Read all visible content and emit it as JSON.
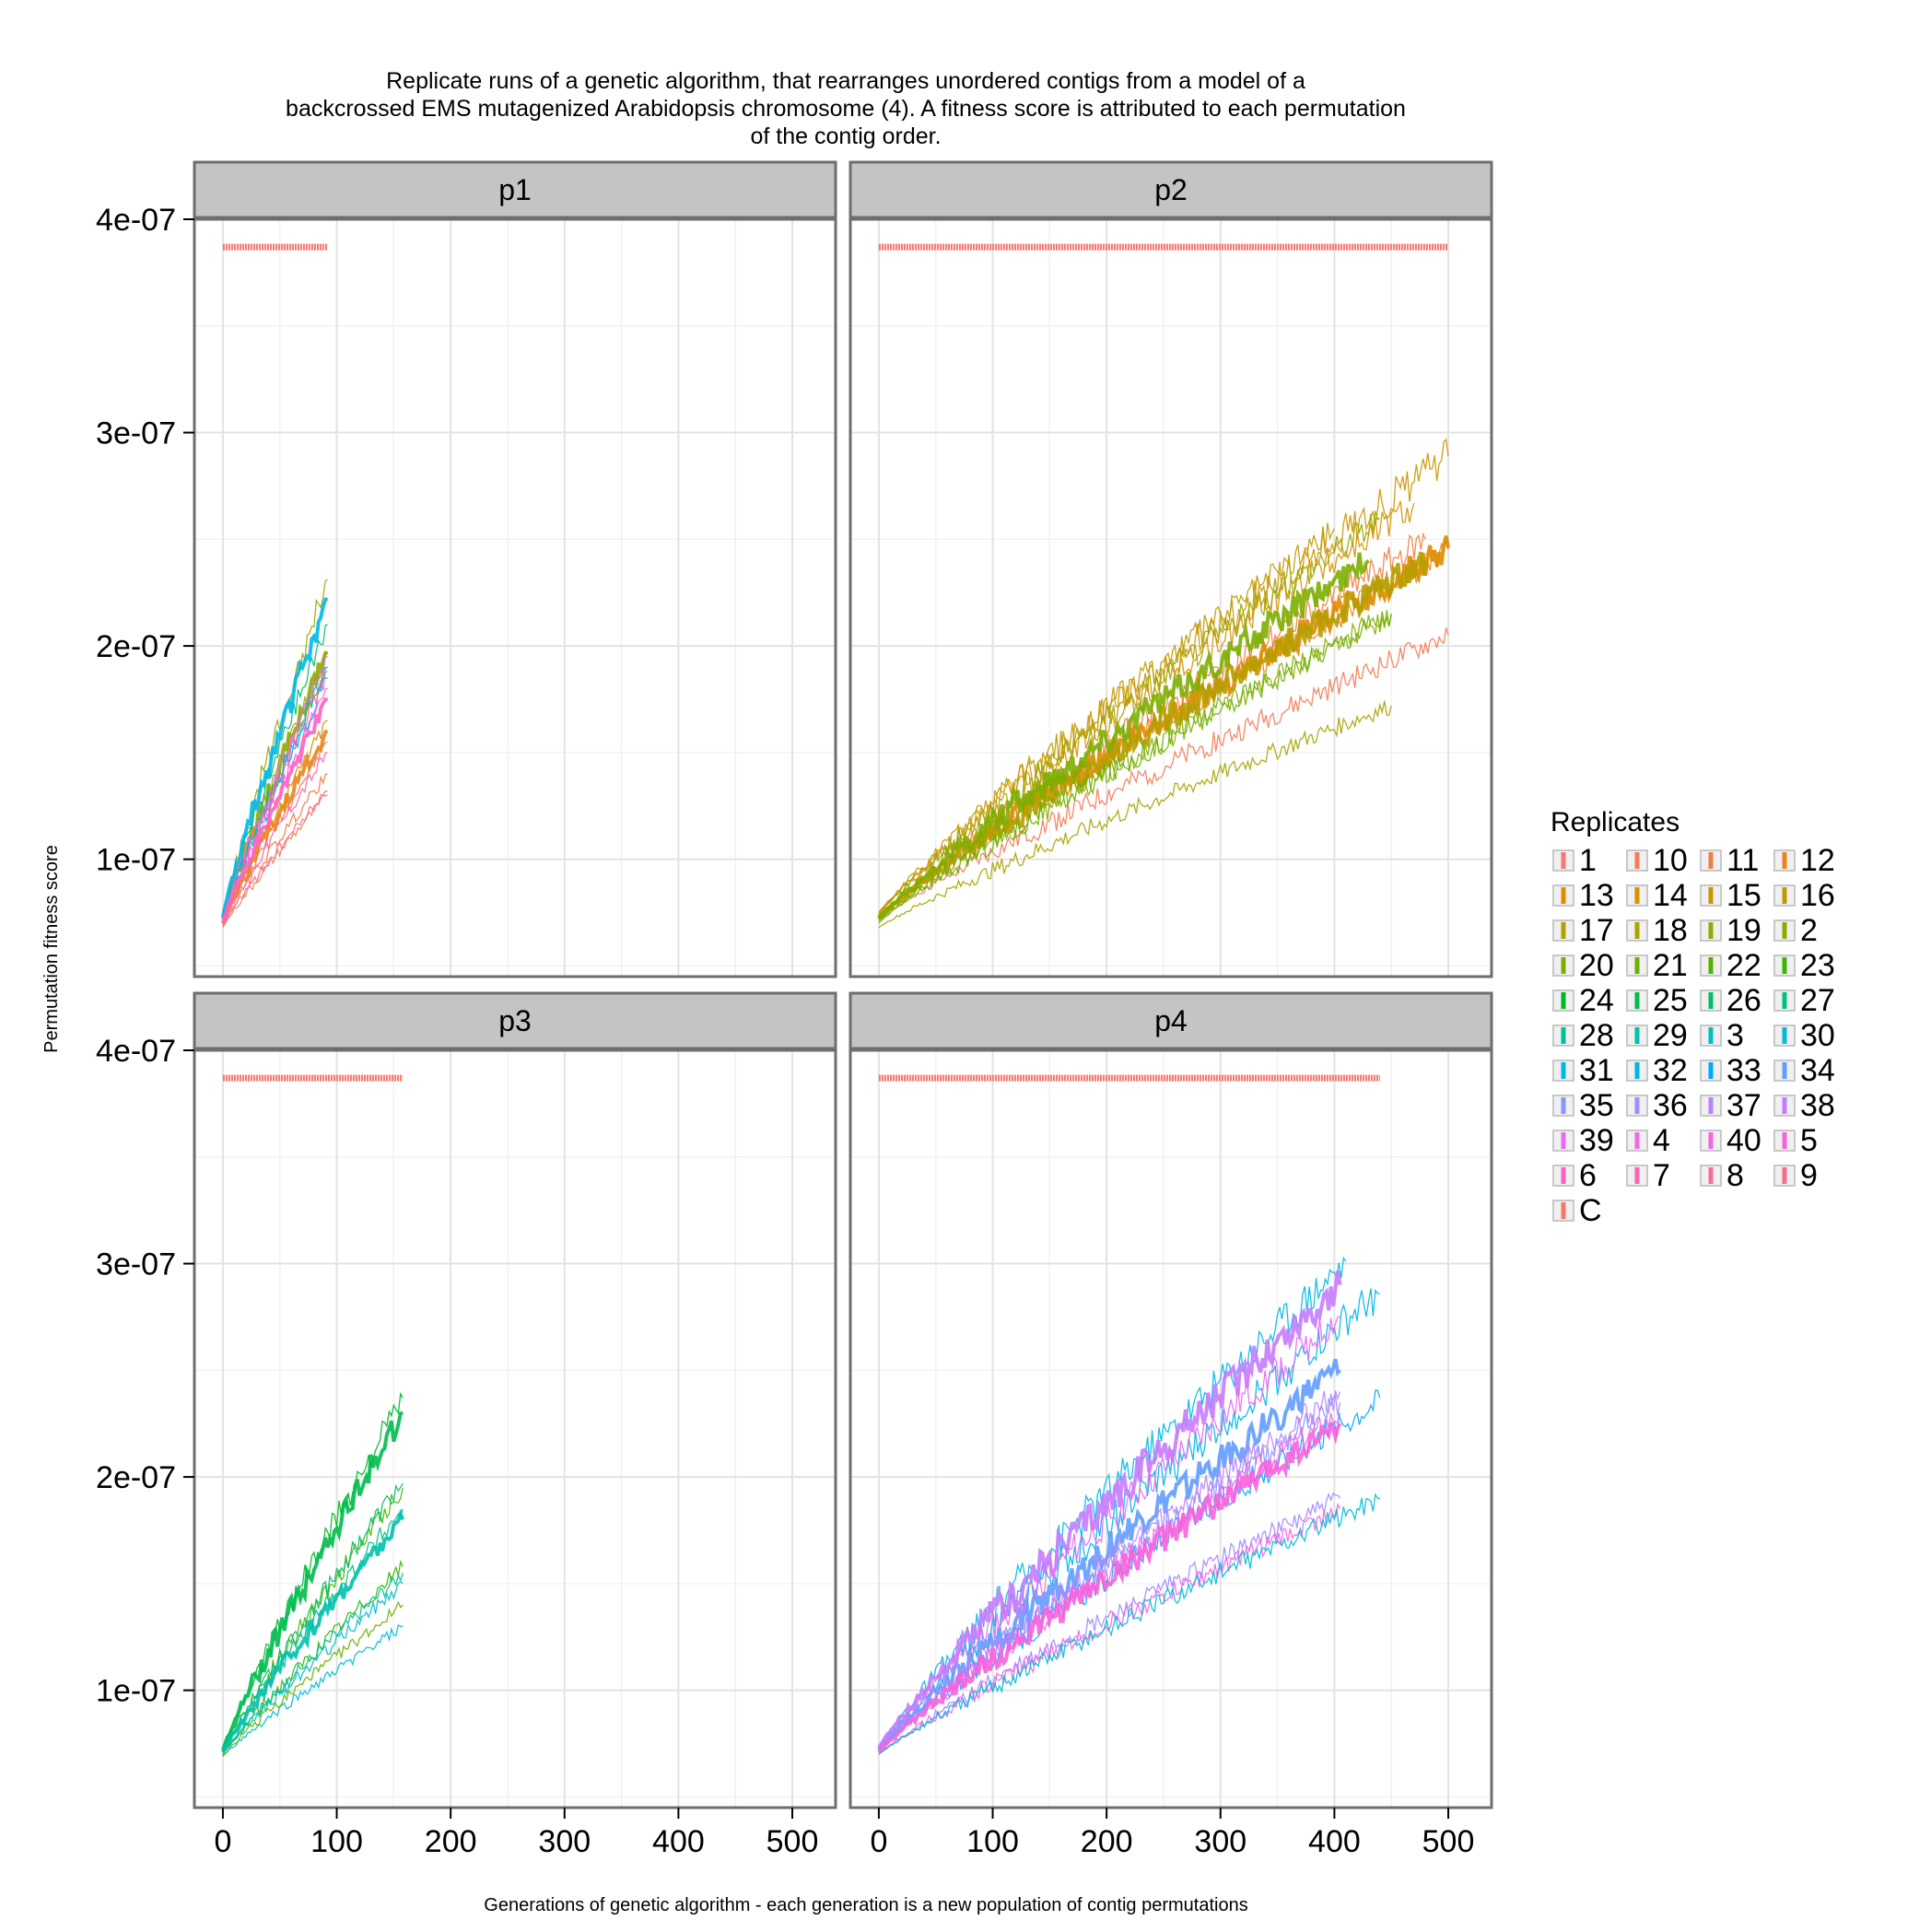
{
  "chart_data": {
    "type": "line",
    "title": "Replicate runs of a genetic algorithm, that rearranges unordered contigs from a model of a\nbackcrossed EMS mutagenized Arabidopsis chromosome (4). A fitness score is attributed to each permutation\nof the contig order.",
    "xlabel": "Generations of genetic algorithm - each generation is a new population of contig permutations",
    "ylabel": "Permutation fitness score",
    "xlim": [
      -25,
      538
    ],
    "ylim": [
      4.5e-08,
      4e-07
    ],
    "x_ticks": [
      0,
      100,
      200,
      300,
      400,
      500
    ],
    "x_tick_labels": [
      "0",
      "100",
      "200",
      "300",
      "400",
      "500"
    ],
    "y_ticks": [
      1e-07,
      2e-07,
      3e-07,
      4e-07
    ],
    "y_tick_labels": [
      "1e-07",
      "2e-07",
      "3e-07",
      "4e-07"
    ],
    "grid": true,
    "facet_labels": [
      "p1",
      "p2",
      "p3",
      "p4"
    ],
    "legend": {
      "title": "Replicates",
      "position": "right",
      "columns": 4,
      "entries": [
        "1",
        "10",
        "11",
        "12",
        "13",
        "14",
        "15",
        "16",
        "17",
        "18",
        "19",
        "2",
        "20",
        "21",
        "22",
        "23",
        "24",
        "25",
        "26",
        "27",
        "28",
        "29",
        "3",
        "30",
        "31",
        "32",
        "33",
        "34",
        "35",
        "36",
        "37",
        "38",
        "39",
        "4",
        "40",
        "5",
        "6",
        "7",
        "8",
        "9",
        "C"
      ],
      "colors": [
        "#F8766D",
        "#F47C56",
        "#EE8043",
        "#E7861B",
        "#DE8C00",
        "#D59100",
        "#CB9600",
        "#BF9B00",
        "#B49F00",
        "#A8A400",
        "#9AA800",
        "#8CAB00",
        "#7CAE00",
        "#6AB100",
        "#53B400",
        "#39B600",
        "#00B81F",
        "#00BB4E",
        "#00BE6C",
        "#00C085",
        "#00C19C",
        "#00C0AF",
        "#00BFC4",
        "#00BCD6",
        "#00B8E5",
        "#00B4F0",
        "#00A9FF",
        "#619CFF",
        "#8B93FF",
        "#A58AFF",
        "#B983FF",
        "#C77CFF",
        "#E76BF3",
        "#ED68ED",
        "#F564E3",
        "#FA62DB",
        "#FF61C3",
        "#FF64B0",
        "#FF689E",
        "#FC6B8A",
        "#F8766D"
      ]
    },
    "panels": [
      {
        "name": "p1",
        "constant_line": {
          "x": [
            0,
            92
          ],
          "y": 3.87e-07,
          "color": "#F8766D"
        },
        "series": [
          {
            "replicate": "1",
            "color": "#F8766D",
            "x": [
              0,
              92
            ],
            "y": [
              7e-08,
              1.55e-07
            ]
          },
          {
            "replicate": "10",
            "color": "#F47C56",
            "x": [
              0,
              92
            ],
            "y": [
              6.8e-08,
              1.3e-07
            ]
          },
          {
            "replicate": "11",
            "color": "#EE8043",
            "x": [
              0,
              92
            ],
            "y": [
              6.9e-08,
              1.4e-07
            ]
          },
          {
            "replicate": "12",
            "color": "#E7861B",
            "x": [
              0,
              92
            ],
            "y": [
              7e-08,
              1.6e-07
            ]
          },
          {
            "replicate": "13",
            "color": "#DE8C00",
            "x": [
              0,
              92
            ],
            "y": [
              7e-08,
              1.65e-07
            ]
          },
          {
            "replicate": "17",
            "color": "#B49F00",
            "x": [
              0,
              92
            ],
            "y": [
              7.2e-08,
              1.97e-07
            ]
          },
          {
            "replicate": "19",
            "color": "#9AA800",
            "x": [
              0,
              92
            ],
            "y": [
              7.3e-08,
              2.31e-07
            ]
          },
          {
            "replicate": "2",
            "color": "#8CAB00",
            "x": [
              0,
              92
            ],
            "y": [
              7.2e-08,
              1.97e-07
            ]
          },
          {
            "replicate": "22",
            "color": "#53B400",
            "x": [
              0,
              92
            ],
            "y": [
              7.1e-08,
              1.9e-07
            ]
          },
          {
            "replicate": "26",
            "color": "#00BE6C",
            "x": [
              0,
              92
            ],
            "y": [
              7.3e-08,
              2.1e-07
            ]
          },
          {
            "replicate": "3",
            "color": "#00BFC4",
            "x": [
              0,
              92
            ],
            "y": [
              7.1e-08,
              1.9e-07
            ]
          },
          {
            "replicate": "31",
            "color": "#00B8E5",
            "x": [
              0,
              92
            ],
            "y": [
              7.3e-08,
              2.22e-07
            ]
          },
          {
            "replicate": "33",
            "color": "#00A9FF",
            "x": [
              0,
              92
            ],
            "y": [
              7.1e-08,
              1.85e-07
            ]
          },
          {
            "replicate": "39",
            "color": "#E76BF3",
            "x": [
              0,
              92
            ],
            "y": [
              7.2e-08,
              1.95e-07
            ]
          },
          {
            "replicate": "5",
            "color": "#FA62DB",
            "x": [
              0,
              92
            ],
            "y": [
              7e-08,
              1.8e-07
            ]
          },
          {
            "replicate": "6",
            "color": "#FF61C3",
            "x": [
              0,
              92
            ],
            "y": [
              7e-08,
              1.75e-07
            ]
          },
          {
            "replicate": "7",
            "color": "#FF64B0",
            "x": [
              0,
              92
            ],
            "y": [
              7.1e-08,
              1.88e-07
            ]
          },
          {
            "replicate": "8",
            "color": "#FF689E",
            "x": [
              0,
              92
            ],
            "y": [
              6.9e-08,
              1.5e-07
            ]
          },
          {
            "replicate": "9",
            "color": "#FC6B8A",
            "x": [
              0,
              92
            ],
            "y": [
              6.9e-08,
              1.32e-07
            ]
          }
        ]
      },
      {
        "name": "p2",
        "constant_line": {
          "x": [
            0,
            500
          ],
          "y": 3.87e-07,
          "color": "#F8766D"
        },
        "series": [
          {
            "replicate": "10",
            "color": "#F47C56",
            "x": [
              0,
              500
            ],
            "y": [
              7.2e-08,
              2.05e-07
            ]
          },
          {
            "replicate": "11",
            "color": "#EE8043",
            "x": [
              0,
              480
            ],
            "y": [
              7.2e-08,
              2.5e-07
            ]
          },
          {
            "replicate": "12",
            "color": "#E7861B",
            "x": [
              0,
              500
            ],
            "y": [
              7.3e-08,
              2.45e-07
            ]
          },
          {
            "replicate": "13",
            "color": "#DE8C00",
            "x": [
              0,
              500
            ],
            "y": [
              7.3e-08,
              2.46e-07
            ]
          },
          {
            "replicate": "14",
            "color": "#D59100",
            "x": [
              0,
              470
            ],
            "y": [
              7.5e-08,
              2.67e-07
            ]
          },
          {
            "replicate": "15",
            "color": "#CB9600",
            "x": [
              0,
              500
            ],
            "y": [
              7.5e-08,
              2.89e-07
            ]
          },
          {
            "replicate": "16",
            "color": "#BF9B00",
            "x": [
              0,
              400
            ],
            "y": [
              7.4e-08,
              2.55e-07
            ]
          },
          {
            "replicate": "17",
            "color": "#B49F00",
            "x": [
              0,
              480
            ],
            "y": [
              7.2e-08,
              2.4e-07
            ]
          },
          {
            "replicate": "18",
            "color": "#A8A400",
            "x": [
              0,
              450
            ],
            "y": [
              6.8e-08,
              1.72e-07
            ]
          },
          {
            "replicate": "19",
            "color": "#9AA800",
            "x": [
              0,
              440
            ],
            "y": [
              7.4e-08,
              2.6e-07
            ]
          },
          {
            "replicate": "2",
            "color": "#8CAB00",
            "x": [
              0,
              450
            ],
            "y": [
              7.1e-08,
              2.15e-07
            ]
          },
          {
            "replicate": "20",
            "color": "#7CAE00",
            "x": [
              0,
              430
            ],
            "y": [
              7.2e-08,
              2.4e-07
            ]
          },
          {
            "replicate": "21",
            "color": "#6AB100",
            "x": [
              0,
              450
            ],
            "y": [
              7e-08,
              2.15e-07
            ]
          }
        ]
      },
      {
        "name": "p3",
        "constant_line": {
          "x": [
            0,
            158
          ],
          "y": 3.87e-07,
          "color": "#F8766D"
        },
        "series": [
          {
            "replicate": "22",
            "color": "#53B400",
            "x": [
              0,
              158
            ],
            "y": [
              7.1e-08,
              1.95e-07
            ]
          },
          {
            "replicate": "23",
            "color": "#39B600",
            "x": [
              0,
              158
            ],
            "y": [
              7e-08,
              1.58e-07
            ]
          },
          {
            "replicate": "24",
            "color": "#00B81F",
            "x": [
              0,
              158
            ],
            "y": [
              7.2e-08,
              2.37e-07
            ]
          },
          {
            "replicate": "25",
            "color": "#00BB4E",
            "x": [
              0,
              158
            ],
            "y": [
              7.2e-08,
              2.3e-07
            ]
          },
          {
            "replicate": "26",
            "color": "#00BE6C",
            "x": [
              0,
              158
            ],
            "y": [
              7.2e-08,
              1.97e-07
            ]
          },
          {
            "replicate": "27",
            "color": "#00C085",
            "x": [
              0,
              158
            ],
            "y": [
              7.1e-08,
              1.85e-07
            ]
          },
          {
            "replicate": "28",
            "color": "#00C19C",
            "x": [
              0,
              158
            ],
            "y": [
              7e-08,
              1.55e-07
            ]
          },
          {
            "replicate": "29",
            "color": "#00C0AF",
            "x": [
              0,
              158
            ],
            "y": [
              7.1e-08,
              1.8e-07
            ]
          },
          {
            "replicate": "3",
            "color": "#00BFC4",
            "x": [
              0,
              158
            ],
            "y": [
              7e-08,
              1.5e-07
            ]
          },
          {
            "replicate": "30",
            "color": "#00BCD6",
            "x": [
              0,
              158
            ],
            "y": [
              6.9e-08,
              1.3e-07
            ]
          },
          {
            "replicate": "21",
            "color": "#6AB100",
            "x": [
              0,
              158
            ],
            "y": [
              6.9e-08,
              1.4e-07
            ]
          }
        ]
      },
      {
        "name": "p4",
        "constant_line": {
          "x": [
            0,
            440
          ],
          "y": 3.87e-07,
          "color": "#F8766D"
        },
        "series": [
          {
            "replicate": "31",
            "color": "#00B8E5",
            "x": [
              0,
              410
            ],
            "y": [
              7.3e-08,
              3.01e-07
            ]
          },
          {
            "replicate": "32",
            "color": "#00B4F0",
            "x": [
              0,
              440
            ],
            "y": [
              7.3e-08,
              2.86e-07
            ]
          },
          {
            "replicate": "33",
            "color": "#00A9FF",
            "x": [
              0,
              440
            ],
            "y": [
              7.2e-08,
              2.37e-07
            ]
          },
          {
            "replicate": "34",
            "color": "#619CFF",
            "x": [
              0,
              405
            ],
            "y": [
              7.2e-08,
              2.5e-07
            ]
          },
          {
            "replicate": "35",
            "color": "#8B93FF",
            "x": [
              0,
              405
            ],
            "y": [
              7.1e-08,
              2.35e-07
            ]
          },
          {
            "replicate": "36",
            "color": "#A58AFF",
            "x": [
              0,
              405
            ],
            "y": [
              7e-08,
              1.9e-07
            ]
          },
          {
            "replicate": "37",
            "color": "#B983FF",
            "x": [
              0,
              405
            ],
            "y": [
              7.1e-08,
              2.4e-07
            ]
          },
          {
            "replicate": "38",
            "color": "#C77CFF",
            "x": [
              0,
              405
            ],
            "y": [
              7.3e-08,
              2.9e-07
            ]
          },
          {
            "replicate": "39",
            "color": "#E76BF3",
            "x": [
              0,
              405
            ],
            "y": [
              7.2e-08,
              2.75e-07
            ]
          },
          {
            "replicate": "4",
            "color": "#ED68ED",
            "x": [
              0,
              405
            ],
            "y": [
              7.1e-08,
              2.3e-07
            ]
          },
          {
            "replicate": "40",
            "color": "#F564E3",
            "x": [
              0,
              405
            ],
            "y": [
              7e-08,
              1.85e-07
            ]
          },
          {
            "replicate": "5",
            "color": "#FA62DB",
            "x": [
              0,
              405
            ],
            "y": [
              7.1e-08,
              2.25e-07
            ]
          },
          {
            "replicate": "30",
            "color": "#00BCD6",
            "x": [
              0,
              440
            ],
            "y": [
              7e-08,
              1.9e-07
            ]
          }
        ]
      }
    ]
  }
}
